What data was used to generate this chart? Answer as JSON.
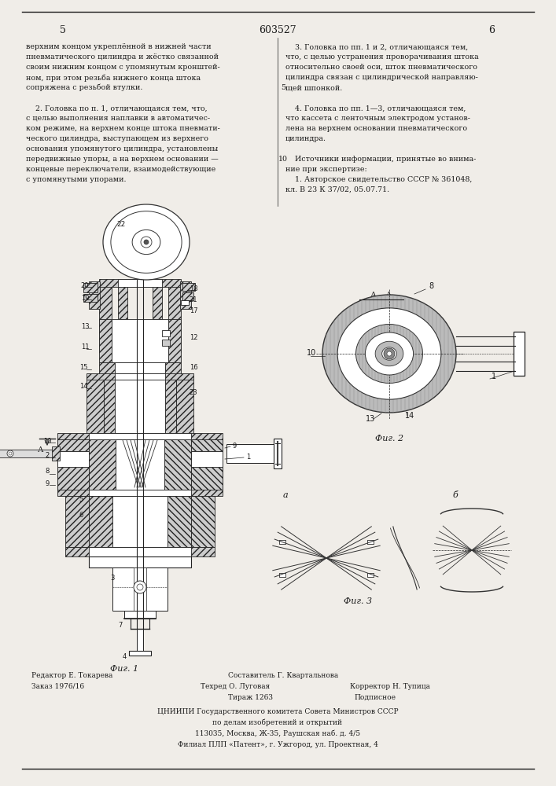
{
  "patent_number": "603527",
  "page_numbers": [
    "5",
    "6"
  ],
  "background_color": "#f0ede8",
  "text_color": "#1a1a1a",
  "fig_width": 7.07,
  "fig_height": 10.0,
  "dpi": 100,
  "left_column_lines": [
    "верхним концом укреплённой в нижней части",
    "пневматического цилиндра и жёстко связанной",
    "своим нижним концом с упомянутым кронштей-",
    "ном, при этом резьба нижнего конца штока",
    "сопряжена с резьбой втулки.",
    "",
    "    2. Головка по п. 1, отличающаяся тем, что,",
    "с целью выполнения наплавки в автоматичес-",
    "ком режиме, на верхнем конце штока пневмати-",
    "ческого цилиндра, выступающем из верхнего",
    "основания упомянутого цилиндра, установлены",
    "передвижные упоры, а на верхнем основании —",
    "концевые переключатели, взаимодействующие",
    "с упомянутыми упорами."
  ],
  "right_column_lines": [
    "    3. Головка по пп. 1 и 2, отличающаяся тем,",
    "что, с целью устранения проворачивания штока",
    "относительно своей оси, шток пневматического",
    "цилиндра связан с цилиндрической направляю-",
    "щей шпонкой.",
    "",
    "    4. Головка по пп. 1—3, отличающаяся тем,",
    "что кассета с ленточным электродом установ-",
    "лена на верхнем основании пневматического",
    "цилиндра.",
    "",
    "    Источники информации, принятые во внима-",
    "ние при экспертизе:",
    "    1. Авторское свидетельство СССР № 361048,",
    "кл. В 23 К 37/02, 05.07.71."
  ],
  "fig1_label": "Фиг. 1",
  "fig2_label": "Фиг. 2",
  "fig3_label": "Фиг. 3",
  "section_label": "А – А"
}
